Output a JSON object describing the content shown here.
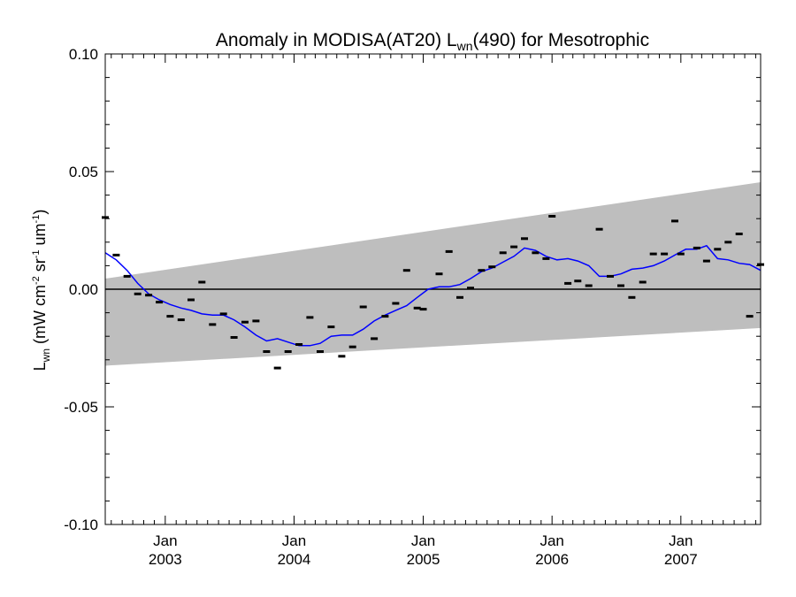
{
  "chart_data": {
    "type": "scatter",
    "title_main": "Anomaly in MODISA(AT20) L",
    "title_sub": "wn",
    "title_rest": "(490) for Mesotrophic",
    "ylabel_main": "L",
    "ylabel_sub": "wn",
    "ylabel_units": " (mW cm",
    "ylabel_exp1": "-2",
    "ylabel_mid": " sr",
    "ylabel_exp2": "-1",
    "ylabel_um": " um",
    "ylabel_exp3": "-1",
    "ylabel_close": ")",
    "ylim": [
      -0.1,
      0.1
    ],
    "xlim": [
      "2002-07-15",
      "2007-08-15"
    ],
    "yticks": [
      {
        "value": -0.1,
        "label": "-0.10"
      },
      {
        "value": -0.05,
        "label": "-0.05"
      },
      {
        "value": 0.0,
        "label": "0.00"
      },
      {
        "value": 0.05,
        "label": "0.05"
      },
      {
        "value": 0.1,
        "label": "0.10"
      }
    ],
    "xticks": [
      {
        "date": "2003-01-01",
        "month": "Jan",
        "year": "2003"
      },
      {
        "date": "2004-01-01",
        "month": "Jan",
        "year": "2004"
      },
      {
        "date": "2005-01-01",
        "month": "Jan",
        "year": "2005"
      },
      {
        "date": "2006-01-01",
        "month": "Jan",
        "year": "2006"
      },
      {
        "date": "2007-01-01",
        "month": "Jan",
        "year": "2007"
      }
    ],
    "colors": {
      "band": "#bebebe",
      "smooth_line": "#0000ff",
      "points": "#000000",
      "zero_line": "#000000"
    },
    "uncertainty_band": {
      "start": {
        "date": "2002-07-15",
        "lower": -0.0325,
        "upper": 0.0045
      },
      "end": {
        "date": "2007-08-15",
        "lower": -0.0165,
        "upper": 0.0455
      }
    },
    "points": [
      {
        "date": "2002-07-15",
        "value": 0.0305
      },
      {
        "date": "2002-08-15",
        "value": 0.0145
      },
      {
        "date": "2002-09-15",
        "value": 0.0055
      },
      {
        "date": "2002-10-15",
        "value": -0.002
      },
      {
        "date": "2002-11-15",
        "value": -0.0025
      },
      {
        "date": "2002-12-15",
        "value": -0.0055
      },
      {
        "date": "2003-01-15",
        "value": -0.0115
      },
      {
        "date": "2003-02-15",
        "value": -0.013
      },
      {
        "date": "2003-03-15",
        "value": -0.0045
      },
      {
        "date": "2003-04-15",
        "value": 0.003
      },
      {
        "date": "2003-05-15",
        "value": -0.015
      },
      {
        "date": "2003-06-15",
        "value": -0.0105
      },
      {
        "date": "2003-07-15",
        "value": -0.0205
      },
      {
        "date": "2003-08-15",
        "value": -0.014
      },
      {
        "date": "2003-09-15",
        "value": -0.0135
      },
      {
        "date": "2003-10-15",
        "value": -0.0265
      },
      {
        "date": "2003-11-15",
        "value": -0.0335
      },
      {
        "date": "2003-12-15",
        "value": -0.0265
      },
      {
        "date": "2004-01-15",
        "value": -0.0235
      },
      {
        "date": "2004-02-15",
        "value": -0.012
      },
      {
        "date": "2004-03-15",
        "value": -0.0265
      },
      {
        "date": "2004-04-15",
        "value": -0.016
      },
      {
        "date": "2004-05-15",
        "value": -0.0285
      },
      {
        "date": "2004-06-15",
        "value": -0.0245
      },
      {
        "date": "2004-07-15",
        "value": -0.0075
      },
      {
        "date": "2004-08-15",
        "value": -0.021
      },
      {
        "date": "2004-09-15",
        "value": -0.0115
      },
      {
        "date": "2004-10-15",
        "value": -0.006
      },
      {
        "date": "2004-11-15",
        "value": 0.008
      },
      {
        "date": "2004-12-15",
        "value": -0.008
      },
      {
        "date": "2005-01-01",
        "value": -0.0085
      },
      {
        "date": "2005-02-15",
        "value": 0.0065
      },
      {
        "date": "2005-03-15",
        "value": 0.016
      },
      {
        "date": "2005-04-15",
        "value": -0.0035
      },
      {
        "date": "2005-05-15",
        "value": 0.0005
      },
      {
        "date": "2005-06-15",
        "value": 0.008
      },
      {
        "date": "2005-07-15",
        "value": 0.0095
      },
      {
        "date": "2005-08-15",
        "value": 0.0155
      },
      {
        "date": "2005-09-15",
        "value": 0.018
      },
      {
        "date": "2005-10-15",
        "value": 0.0215
      },
      {
        "date": "2005-11-15",
        "value": 0.0155
      },
      {
        "date": "2005-12-15",
        "value": 0.013
      },
      {
        "date": "2006-01-01",
        "value": 0.031
      },
      {
        "date": "2006-02-15",
        "value": 0.0025
      },
      {
        "date": "2006-03-15",
        "value": 0.0035
      },
      {
        "date": "2006-04-15",
        "value": 0.0015
      },
      {
        "date": "2006-05-15",
        "value": 0.0255
      },
      {
        "date": "2006-06-15",
        "value": 0.0055
      },
      {
        "date": "2006-07-15",
        "value": 0.0015
      },
      {
        "date": "2006-08-15",
        "value": -0.0035
      },
      {
        "date": "2006-09-15",
        "value": 0.003
      },
      {
        "date": "2006-10-15",
        "value": 0.015
      },
      {
        "date": "2006-11-15",
        "value": 0.015
      },
      {
        "date": "2006-12-15",
        "value": 0.029
      },
      {
        "date": "2007-01-01",
        "value": 0.015
      },
      {
        "date": "2007-02-15",
        "value": 0.0175
      },
      {
        "date": "2007-03-15",
        "value": 0.012
      },
      {
        "date": "2007-04-15",
        "value": 0.017
      },
      {
        "date": "2007-05-15",
        "value": 0.02
      },
      {
        "date": "2007-06-15",
        "value": 0.0235
      },
      {
        "date": "2007-07-15",
        "value": -0.0115
      },
      {
        "date": "2007-08-15",
        "value": 0.0105
      }
    ],
    "smooth_series": [
      {
        "date": "2002-07-15",
        "value": 0.0155
      },
      {
        "date": "2002-08-15",
        "value": 0.0125
      },
      {
        "date": "2002-09-15",
        "value": 0.008
      },
      {
        "date": "2002-10-15",
        "value": 0.0025
      },
      {
        "date": "2002-11-15",
        "value": -0.002
      },
      {
        "date": "2002-12-15",
        "value": -0.0045
      },
      {
        "date": "2003-01-15",
        "value": -0.0065
      },
      {
        "date": "2003-02-15",
        "value": -0.008
      },
      {
        "date": "2003-03-15",
        "value": -0.009
      },
      {
        "date": "2003-04-15",
        "value": -0.0105
      },
      {
        "date": "2003-05-15",
        "value": -0.011
      },
      {
        "date": "2003-06-15",
        "value": -0.011
      },
      {
        "date": "2003-07-15",
        "value": -0.013
      },
      {
        "date": "2003-08-15",
        "value": -0.016
      },
      {
        "date": "2003-09-15",
        "value": -0.0195
      },
      {
        "date": "2003-10-15",
        "value": -0.022
      },
      {
        "date": "2003-11-15",
        "value": -0.021
      },
      {
        "date": "2003-12-15",
        "value": -0.0225
      },
      {
        "date": "2004-01-15",
        "value": -0.024
      },
      {
        "date": "2004-02-15",
        "value": -0.024
      },
      {
        "date": "2004-03-15",
        "value": -0.023
      },
      {
        "date": "2004-04-15",
        "value": -0.02
      },
      {
        "date": "2004-05-15",
        "value": -0.0195
      },
      {
        "date": "2004-06-15",
        "value": -0.0195
      },
      {
        "date": "2004-07-15",
        "value": -0.017
      },
      {
        "date": "2004-08-15",
        "value": -0.0135
      },
      {
        "date": "2004-09-15",
        "value": -0.011
      },
      {
        "date": "2004-10-15",
        "value": -0.009
      },
      {
        "date": "2004-11-15",
        "value": -0.007
      },
      {
        "date": "2004-12-15",
        "value": -0.0035
      },
      {
        "date": "2005-01-15",
        "value": 0.0
      },
      {
        "date": "2005-02-15",
        "value": 0.001
      },
      {
        "date": "2005-03-15",
        "value": 0.001
      },
      {
        "date": "2005-04-15",
        "value": 0.002
      },
      {
        "date": "2005-05-15",
        "value": 0.0045
      },
      {
        "date": "2005-06-15",
        "value": 0.0075
      },
      {
        "date": "2005-07-15",
        "value": 0.009
      },
      {
        "date": "2005-08-15",
        "value": 0.0115
      },
      {
        "date": "2005-09-15",
        "value": 0.014
      },
      {
        "date": "2005-10-15",
        "value": 0.0175
      },
      {
        "date": "2005-11-15",
        "value": 0.0165
      },
      {
        "date": "2005-12-15",
        "value": 0.014
      },
      {
        "date": "2006-01-15",
        "value": 0.0125
      },
      {
        "date": "2006-02-15",
        "value": 0.013
      },
      {
        "date": "2006-03-15",
        "value": 0.012
      },
      {
        "date": "2006-04-15",
        "value": 0.01
      },
      {
        "date": "2006-05-15",
        "value": 0.0055
      },
      {
        "date": "2006-06-15",
        "value": 0.0055
      },
      {
        "date": "2006-07-15",
        "value": 0.0065
      },
      {
        "date": "2006-08-15",
        "value": 0.0085
      },
      {
        "date": "2006-09-15",
        "value": 0.009
      },
      {
        "date": "2006-10-15",
        "value": 0.01
      },
      {
        "date": "2006-11-15",
        "value": 0.012
      },
      {
        "date": "2006-12-15",
        "value": 0.0145
      },
      {
        "date": "2007-01-15",
        "value": 0.017
      },
      {
        "date": "2007-02-15",
        "value": 0.017
      },
      {
        "date": "2007-03-15",
        "value": 0.0185
      },
      {
        "date": "2007-04-15",
        "value": 0.013
      },
      {
        "date": "2007-05-15",
        "value": 0.0125
      },
      {
        "date": "2007-06-15",
        "value": 0.011
      },
      {
        "date": "2007-07-15",
        "value": 0.0105
      },
      {
        "date": "2007-08-15",
        "value": 0.008
      }
    ]
  }
}
